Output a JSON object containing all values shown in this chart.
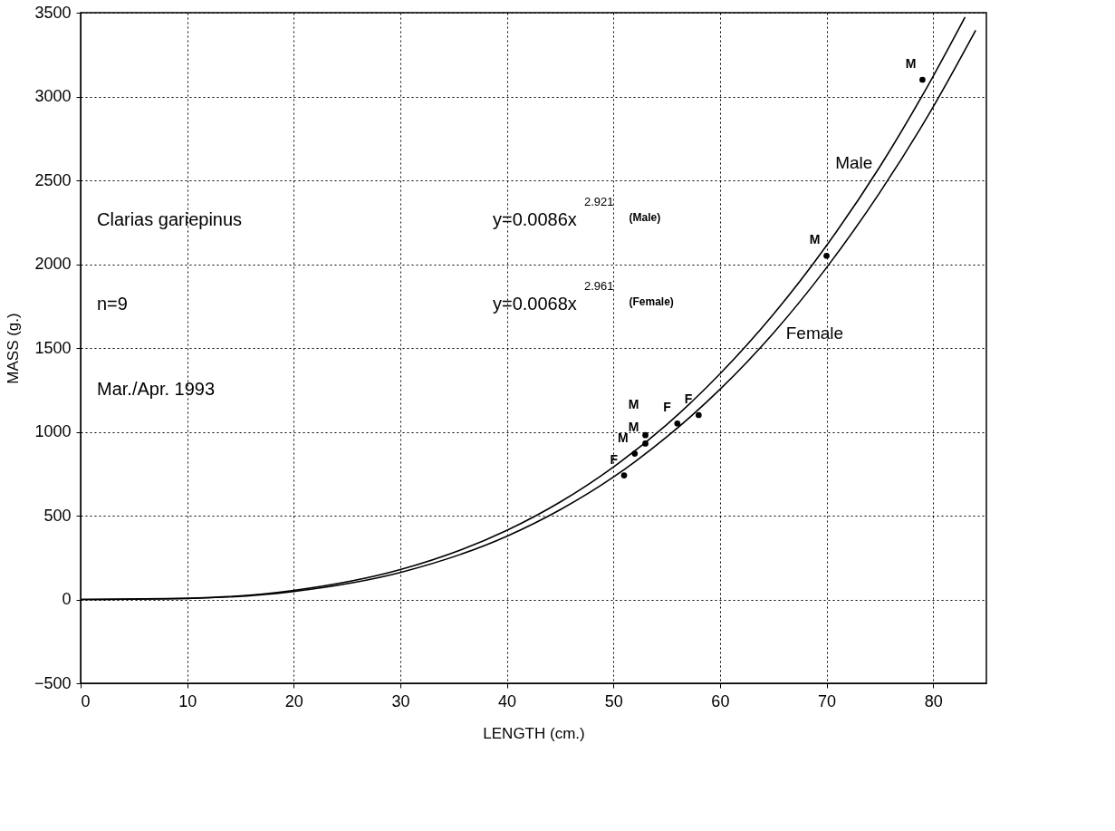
{
  "chart_data": {
    "type": "line",
    "xlabel": "LENGTH (cm.)",
    "ylabel": "MASS (g.)",
    "xlim": [
      0,
      85
    ],
    "ylim": [
      -500,
      3500
    ],
    "xticks": [
      0,
      10,
      20,
      30,
      40,
      50,
      60,
      70,
      80
    ],
    "yticks": [
      -500,
      0,
      500,
      1000,
      1500,
      2000,
      2500,
      3000,
      3500
    ],
    "grid": true,
    "legend": false,
    "line_style": "solid",
    "series": [
      {
        "name": "Male",
        "color": "#000000",
        "marker": "none",
        "x": [
          0,
          10,
          20,
          30,
          40,
          45,
          50,
          55,
          60,
          65,
          70,
          75,
          80,
          83
        ],
        "values": [
          0,
          7,
          54,
          178,
          412,
          581,
          790,
          1043,
          1346,
          1700,
          2111,
          2581,
          3120,
          3473
        ]
      },
      {
        "name": "Female",
        "color": "#000000",
        "marker": "none",
        "x": [
          0,
          10,
          20,
          30,
          40,
          45,
          50,
          55,
          60,
          65,
          70,
          75,
          80,
          84
        ],
        "values": [
          0,
          6,
          48,
          161,
          377,
          535,
          730,
          969,
          1253,
          1588,
          1979,
          2428,
          2937,
          3395
        ]
      },
      {
        "color": "#000000",
        "type": "scatter",
        "marker": "circle",
        "x": [
          51,
          52,
          53,
          53,
          56,
          58,
          70,
          79
        ],
        "values": [
          740,
          870,
          930,
          980,
          1050,
          1100,
          2050,
          3100
        ]
      }
    ],
    "annotations": [
      "Clarias gariepinus",
      "n=9",
      "Mar./Apr. 1993",
      "y=0.0086x$^{2.921}$ (Male)",
      "y=0.0068x$^{2.961}$ (Female)",
      {
        "text": "F",
        "x": 51,
        "y": 740
      },
      {
        "text": "M",
        "x": 52,
        "y": 870
      },
      {
        "text": "M",
        "x": 53,
        "y": 930
      },
      {
        "text": "M",
        "x": 53,
        "y": 980
      },
      {
        "text": "F",
        "x": 56,
        "y": 1050
      },
      {
        "text": "F",
        "x": 58,
        "y": 1100
      },
      {
        "text": "M",
        "x": 70,
        "y": 2050
      },
      {
        "text": "M",
        "x": 79,
        "y": 3100
      }
    ]
  }
}
